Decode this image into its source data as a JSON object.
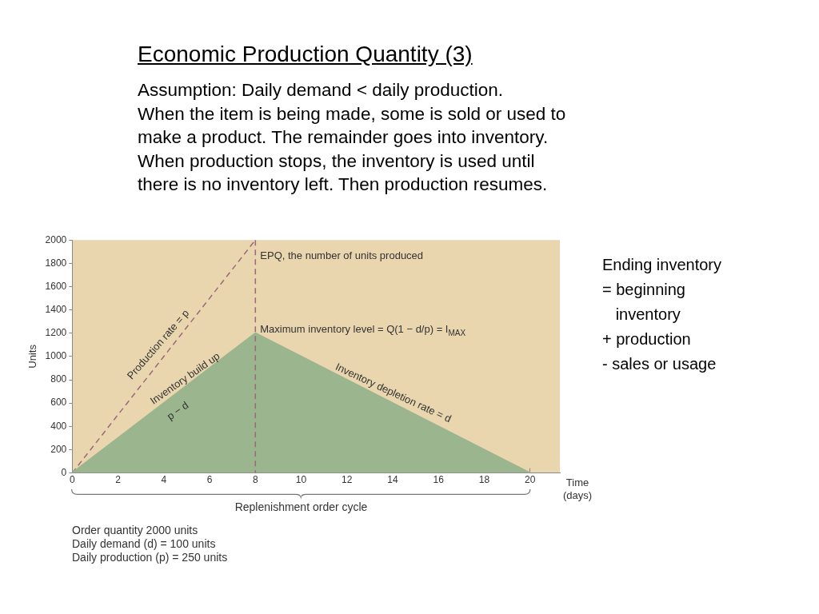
{
  "chart_data": {
    "type": "area",
    "title": "Economic Production Quantity (3)",
    "subtitle": "Assumption: Daily demand < daily production.\nWhen the item is being made, some is sold or used to\nmake a product. The remainder goes into inventory.\nWhen production stops, the inventory is used until\nthere is no inventory left. Then production resumes.",
    "xlabel": "Time\n(days)",
    "ylabel": "Units",
    "series": [
      {
        "color": "#9bb58f",
        "x": [
          0,
          8,
          20
        ],
        "values": [
          0,
          1200,
          0
        ]
      },
      {
        "type": "line",
        "color": "#9a6a7a",
        "line_style": "dashed",
        "x": [
          0,
          8
        ],
        "values": [
          0,
          2000
        ]
      }
    ],
    "xlim": [
      0,
      21.3
    ],
    "xticks": [
      0,
      2,
      4,
      6,
      8,
      10,
      12,
      14,
      16,
      18,
      20
    ],
    "ylim": [
      0,
      2000
    ],
    "yticks": [
      0,
      200,
      400,
      600,
      800,
      1000,
      1200,
      1400,
      1600,
      1800,
      2000
    ],
    "ref_lines": [
      {
        "axis": "x",
        "value": 8,
        "color": "#9a6a7a",
        "line_style": "dashed"
      }
    ],
    "annotations": [
      {
        "text": "EPQ, the number of units produced",
        "x": 8,
        "y": 1860
      },
      {
        "text": "Maximum inventory level = Q(1 − d/p) = I$_{MAX}$",
        "x": 8,
        "y": 1200
      },
      "Production rate = p",
      "Inventory build up",
      "p − d",
      "Inventory depletion rate = d",
      "Replenishment order cycle",
      "Order quantity 2000 units\nDaily demand (d) = 100 units\nDaily production (p) = 250 units",
      "Ending inventory\n= beginning\n   inventory\n+ production\n- sales or usage"
    ],
    "grid": false,
    "legend": false,
    "marker": "none"
  }
}
